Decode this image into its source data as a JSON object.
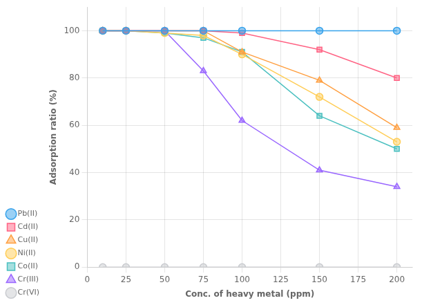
{
  "chart_data": {
    "type": "line",
    "xlabel": "Conc. of heavy metal (ppm)",
    "ylabel": "Adsorption ratio (%)",
    "x": [
      10,
      25,
      50,
      75,
      100,
      150,
      200
    ],
    "series": [
      {
        "name": "Pb(II)",
        "marker": "circle",
        "values": [
          100,
          100,
          100,
          100,
          100,
          100,
          100
        ]
      },
      {
        "name": "Cd(II)",
        "marker": "square",
        "values": [
          100,
          100,
          100,
          100,
          99,
          92,
          80
        ]
      },
      {
        "name": "Cu(II)",
        "marker": "triangle",
        "values": [
          100,
          100,
          100,
          100,
          91,
          79,
          59
        ]
      },
      {
        "name": "Ni(II)",
        "marker": "circle",
        "values": [
          100,
          100,
          99,
          98,
          90,
          72,
          53
        ]
      },
      {
        "name": "Co(II)",
        "marker": "square",
        "values": [
          100,
          100,
          99,
          97,
          91,
          64,
          50
        ]
      },
      {
        "name": "Cr(III)",
        "marker": "triangle",
        "values": [
          100,
          100,
          100,
          83,
          62,
          41,
          34
        ]
      },
      {
        "name": "Cr(VI)",
        "marker": "circle",
        "values": [
          0,
          0,
          0,
          0,
          0,
          0,
          0
        ]
      }
    ],
    "xlim": [
      0,
      210
    ],
    "ylim": [
      0,
      110
    ],
    "xticks": [
      0,
      25,
      50,
      75,
      100,
      125,
      150,
      175,
      200
    ],
    "yticks": [
      0,
      20,
      40,
      60,
      80,
      100
    ],
    "grid": true,
    "legend": "lower left"
  }
}
